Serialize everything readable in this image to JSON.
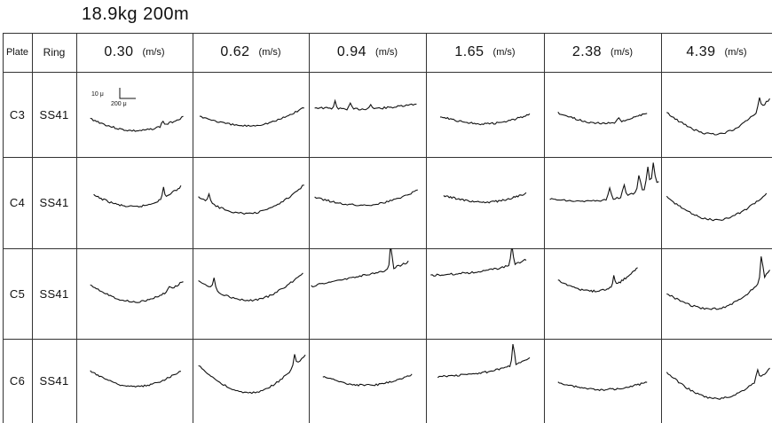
{
  "title": "18.9kg 200m",
  "headers": {
    "plate": "Plate",
    "ring": "Ring",
    "unit": "(m/s)",
    "speeds": [
      "0.30",
      "0.62",
      "0.94",
      "1.65",
      "2.38",
      "4.39"
    ]
  },
  "rows": [
    {
      "plate": "C3",
      "ring": "SS41"
    },
    {
      "plate": "C4",
      "ring": "SS41"
    },
    {
      "plate": "C5",
      "ring": "SS41"
    },
    {
      "plate": "C6",
      "ring": "SS41"
    }
  ],
  "scale_bar": {
    "vertical": "10 μ",
    "horizontal": "200 μ"
  },
  "colors": {
    "ink": "#111111",
    "grid": "#333333"
  }
}
